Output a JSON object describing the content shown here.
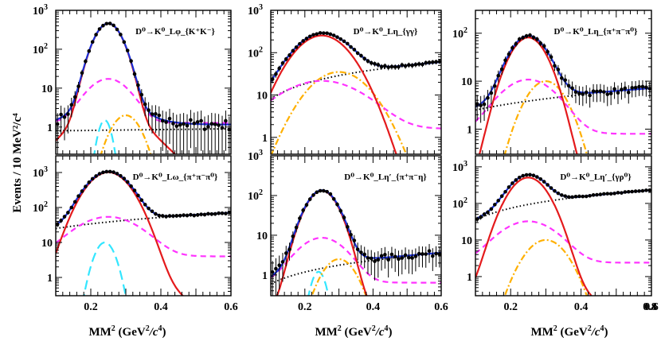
{
  "figure": {
    "ylabel": "Events / 10 MeV²/c⁴",
    "xlabel_main": "MM",
    "xlabel_sup": "2",
    "xlabel_rest": " (GeV",
    "xlabel_sup2": "2",
    "xlabel_c": "/c",
    "xlabel_sup3": "4",
    "xlabel_end": ")",
    "colors": {
      "total_fit": "#1a2fd6",
      "signal": "#e41a1c",
      "magenta": "#ff33ff",
      "orange": "#ffb000",
      "cyan": "#33e6ff",
      "background": "#000000",
      "data": "#000000"
    }
  },
  "chart_data": [
    {
      "type": "scatter",
      "title_tex": "D⁰→K⁰_Lφ_{K⁺K⁻}",
      "x": [
        0.1,
        0.6
      ],
      "yscale": "log",
      "ylim": [
        0.2,
        1000
      ],
      "xticks": [
        "0.2",
        "0.4",
        "0.6"
      ],
      "show_xticks": false,
      "yticks": [
        "1",
        "10",
        "10²",
        "10³"
      ],
      "peak": 450,
      "mean": 0.25,
      "width": 0.03,
      "bkg": [
        0.8,
        0.9
      ],
      "magenta_peak": 16,
      "orange_peak": 2,
      "cyan_peak": 1.5,
      "series": [
        {
          "style": "total_fit"
        },
        {
          "style": "signal"
        },
        {
          "style": "magenta",
          "dash": "dashed"
        },
        {
          "style": "orange",
          "dash": "dashdot"
        },
        {
          "style": "cyan",
          "dash": "longdash"
        },
        {
          "style": "background",
          "dash": "dotted"
        }
      ]
    },
    {
      "type": "scatter",
      "title_tex": "D⁰→K⁰_Lη_{γγ}",
      "x": [
        0.1,
        0.6
      ],
      "yscale": "log",
      "ylim": [
        0.4,
        1000
      ],
      "xticks": [
        "0.2",
        "0.4",
        "0.6"
      ],
      "show_xticks": false,
      "yticks": [
        "1",
        "10",
        "10²",
        "10³"
      ],
      "peak": 250,
      "mean": 0.25,
      "width": 0.06,
      "bkg": [
        8,
        60
      ],
      "magenta_peak": 20,
      "orange_peak": 35,
      "cyan_peak": 0,
      "series": [
        {
          "style": "total_fit"
        },
        {
          "style": "signal"
        },
        {
          "style": "magenta",
          "dash": "dashed"
        },
        {
          "style": "orange",
          "dash": "dashdot"
        },
        {
          "style": "background",
          "dash": "dotted"
        }
      ]
    },
    {
      "type": "scatter",
      "title_tex": "D⁰→K⁰_Lη_{π⁺π⁻π⁰}",
      "x": [
        0.1,
        0.6
      ],
      "yscale": "log",
      "ylim": [
        0.3,
        300
      ],
      "xticks": [
        "0.2",
        "0.4",
        "0.6"
      ],
      "show_xticks": false,
      "yticks": [
        "1",
        "10",
        "10²"
      ],
      "peak": 80,
      "mean": 0.25,
      "width": 0.04,
      "bkg": [
        2.5,
        7
      ],
      "magenta_peak": 10,
      "orange_peak": 10,
      "cyan_peak": 0,
      "series": [
        {
          "style": "total_fit"
        },
        {
          "style": "signal"
        },
        {
          "style": "magenta",
          "dash": "dashed"
        },
        {
          "style": "orange",
          "dash": "dashdot"
        },
        {
          "style": "background",
          "dash": "dotted"
        }
      ]
    },
    {
      "type": "scatter",
      "title_tex": "D⁰→K⁰_Lω_{π⁺π⁻π⁰}",
      "x": [
        0.1,
        0.6
      ],
      "yscale": "log",
      "ylim": [
        0.3,
        3000
      ],
      "xticks": [
        "0.2",
        "0.4",
        "0.6"
      ],
      "show_xticks": true,
      "yticks": [
        "1",
        "10",
        "10²",
        "10³"
      ],
      "peak": 1000,
      "mean": 0.25,
      "width": 0.045,
      "bkg": [
        25,
        70
      ],
      "magenta_peak": 50,
      "orange_peak": 0,
      "cyan_peak": 10,
      "series": [
        {
          "style": "total_fit"
        },
        {
          "style": "signal"
        },
        {
          "style": "magenta",
          "dash": "dashed"
        },
        {
          "style": "cyan",
          "dash": "longdash"
        },
        {
          "style": "background",
          "dash": "dotted"
        }
      ]
    },
    {
      "type": "scatter",
      "title_tex": "D⁰→K⁰_Lη′_{π⁺π⁻η}",
      "x": [
        0.1,
        0.6
      ],
      "yscale": "log",
      "ylim": [
        0.3,
        1000
      ],
      "xticks": [
        "0.2",
        "0.4",
        "0.6"
      ],
      "show_xticks": true,
      "yticks": [
        "1",
        "10",
        "10²"
      ],
      "peak": 130,
      "mean": 0.25,
      "width": 0.035,
      "bkg": [
        0.6,
        3.5
      ],
      "magenta_peak": 8,
      "orange_peak": 2.5,
      "cyan_peak": 1.2,
      "series": [
        {
          "style": "total_fit"
        },
        {
          "style": "signal"
        },
        {
          "style": "magenta",
          "dash": "dashed"
        },
        {
          "style": "orange",
          "dash": "dashdot"
        },
        {
          "style": "cyan",
          "dash": "longdash"
        },
        {
          "style": "background",
          "dash": "dotted"
        }
      ]
    },
    {
      "type": "scatter",
      "title_tex": "D⁰→K⁰_Lη′_{γρ⁰}",
      "x": [
        0.1,
        0.6
      ],
      "yscale": "log",
      "ylim": [
        0.3,
        2000
      ],
      "xticks": [
        "0.2",
        "0.4",
        "0.6",
        "0.8"
      ],
      "show_xticks": true,
      "yticks": [
        "1",
        "10",
        "10²",
        "10³"
      ],
      "peak": 500,
      "mean": 0.25,
      "width": 0.04,
      "bkg": [
        35,
        230
      ],
      "magenta_peak": 30,
      "orange_peak": 10,
      "cyan_peak": 0,
      "series": [
        {
          "style": "total_fit"
        },
        {
          "style": "signal"
        },
        {
          "style": "magenta",
          "dash": "dashed"
        },
        {
          "style": "orange",
          "dash": "dashdot"
        },
        {
          "style": "background",
          "dash": "dotted"
        }
      ]
    }
  ]
}
